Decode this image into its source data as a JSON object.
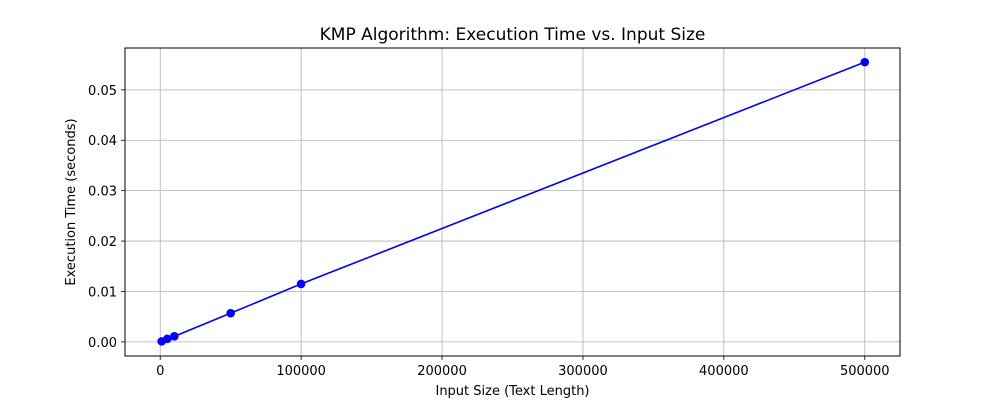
{
  "chart_data": {
    "type": "line",
    "title": "KMP Algorithm: Execution Time vs. Input Size",
    "xlabel": "Input Size (Text Length)",
    "ylabel": "Execution Time (seconds)",
    "xlim": [
      -25000,
      525000
    ],
    "ylim": [
      -0.0028,
      0.0583
    ],
    "grid": true,
    "xticks": [
      0,
      100000,
      200000,
      300000,
      400000,
      500000
    ],
    "xtick_labels": [
      "0",
      "100000",
      "200000",
      "300000",
      "400000",
      "500000"
    ],
    "yticks": [
      0.0,
      0.01,
      0.02,
      0.03,
      0.04,
      0.05
    ],
    "ytick_labels": [
      "0.00",
      "0.01",
      "0.02",
      "0.03",
      "0.04",
      "0.05"
    ],
    "series": [
      {
        "color": "#0000ff",
        "marker": "circle",
        "x": [
          1000,
          5000,
          10000,
          50000,
          100000,
          500000
        ],
        "y": [
          0.0001,
          0.0006,
          0.0011,
          0.0057,
          0.0115,
          0.0555
        ]
      }
    ]
  }
}
